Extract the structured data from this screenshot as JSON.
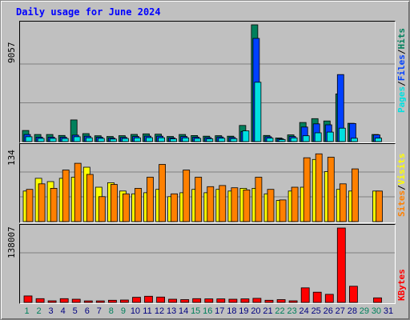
{
  "title": "Daily usage for June 2024",
  "colors": {
    "hits": "#00805C",
    "files": "#0040FF",
    "pages": "#00E0E0",
    "visits": "#FFFF00",
    "sites": "#FF8000",
    "kbytes": "#FF0000",
    "weekend": "#00805C",
    "weekday": "#000080"
  },
  "chart_data": [
    {
      "type": "bar",
      "name": "hits-files-pages",
      "ymax": 9057,
      "ymax_label": "9057",
      "right_label_parts": [
        {
          "text": "Pages",
          "color": "#00E0E0"
        },
        {
          "text": "/",
          "color": "#000000"
        },
        {
          "text": "Files",
          "color": "#0040FF"
        },
        {
          "text": "/",
          "color": "#000000"
        },
        {
          "text": "Hits",
          "color": "#00805C"
        }
      ],
      "categories": [
        "1",
        "2",
        "3",
        "4",
        "5",
        "6",
        "7",
        "8",
        "9",
        "10",
        "11",
        "12",
        "13",
        "14",
        "15",
        "16",
        "17",
        "18",
        "19",
        "20",
        "21",
        "22",
        "23",
        "24",
        "25",
        "26",
        "27",
        "28",
        "29",
        "30",
        "31"
      ],
      "series": [
        {
          "name": "Hits",
          "values": [
            860,
            550,
            550,
            480,
            1680,
            620,
            450,
            400,
            460,
            560,
            600,
            580,
            400,
            550,
            470,
            420,
            460,
            420,
            1250,
            9057,
            480,
            280,
            520,
            1480,
            1780,
            1600,
            3700,
            1420,
            0,
            550,
            0
          ]
        },
        {
          "name": "Files",
          "values": [
            550,
            350,
            350,
            340,
            500,
            420,
            340,
            280,
            330,
            400,
            430,
            420,
            290,
            400,
            350,
            310,
            360,
            320,
            780,
            8000,
            380,
            220,
            400,
            1130,
            1380,
            1300,
            5200,
            1400,
            0,
            520,
            0
          ]
        },
        {
          "name": "Pages",
          "values": [
            380,
            250,
            250,
            240,
            380,
            300,
            250,
            200,
            240,
            290,
            310,
            300,
            210,
            290,
            250,
            220,
            260,
            230,
            830,
            4600,
            270,
            160,
            290,
            450,
            680,
            740,
            1040,
            260,
            0,
            270,
            0
          ]
        }
      ]
    },
    {
      "type": "bar",
      "name": "visits-sites",
      "ymax": 134,
      "ymax_label": "134",
      "right_label_parts": [
        {
          "text": "Sites",
          "color": "#FF8000"
        },
        {
          "text": "/",
          "color": "#000000"
        },
        {
          "text": "Visits",
          "color": "#FFFF00"
        }
      ],
      "categories": [
        "1",
        "2",
        "3",
        "4",
        "5",
        "6",
        "7",
        "8",
        "9",
        "10",
        "11",
        "12",
        "13",
        "14",
        "15",
        "16",
        "17",
        "18",
        "19",
        "20",
        "21",
        "22",
        "23",
        "24",
        "25",
        "26",
        "27",
        "28",
        "29",
        "30",
        "31"
      ],
      "series": [
        {
          "name": "Visits",
          "values": [
            55,
            78,
            72,
            78,
            80,
            98,
            62,
            70,
            55,
            50,
            52,
            58,
            45,
            52,
            58,
            52,
            58,
            55,
            60,
            60,
            50,
            38,
            55,
            62,
            112,
            90,
            58,
            55,
            0,
            55,
            0
          ]
        },
        {
          "name": "Sites",
          "values": [
            58,
            68,
            60,
            93,
            105,
            85,
            45,
            67,
            50,
            60,
            80,
            103,
            50,
            93,
            80,
            63,
            65,
            61,
            57,
            80,
            58,
            39,
            62,
            115,
            122,
            116,
            68,
            95,
            0,
            55,
            0
          ]
        }
      ]
    },
    {
      "type": "bar",
      "name": "kbytes",
      "ymax": 138007,
      "ymax_label": "138007",
      "right_label_parts": [
        {
          "text": "KBytes",
          "color": "#FF0000"
        }
      ],
      "categories": [
        "1",
        "2",
        "3",
        "4",
        "5",
        "6",
        "7",
        "8",
        "9",
        "10",
        "11",
        "12",
        "13",
        "14",
        "15",
        "16",
        "17",
        "18",
        "19",
        "20",
        "21",
        "22",
        "23",
        "24",
        "25",
        "26",
        "27",
        "28",
        "29",
        "30",
        "31"
      ],
      "series": [
        {
          "name": "KBytes",
          "values": [
            12000,
            7000,
            3000,
            7000,
            6000,
            2800,
            2800,
            4000,
            4500,
            9500,
            11500,
            10000,
            6000,
            5200,
            7000,
            6500,
            6500,
            6000,
            6500,
            7500,
            4000,
            5200,
            3000,
            27000,
            19000,
            15000,
            138007,
            30000,
            0,
            8500,
            0
          ]
        }
      ]
    }
  ],
  "x_axis": {
    "days": [
      "1",
      "2",
      "3",
      "4",
      "5",
      "6",
      "7",
      "8",
      "9",
      "10",
      "11",
      "12",
      "13",
      "14",
      "15",
      "16",
      "17",
      "18",
      "19",
      "20",
      "21",
      "22",
      "23",
      "24",
      "25",
      "26",
      "27",
      "28",
      "29",
      "30",
      "31"
    ],
    "weekend_days": [
      "1",
      "2",
      "8",
      "9",
      "15",
      "16",
      "22",
      "23",
      "29",
      "30"
    ]
  }
}
